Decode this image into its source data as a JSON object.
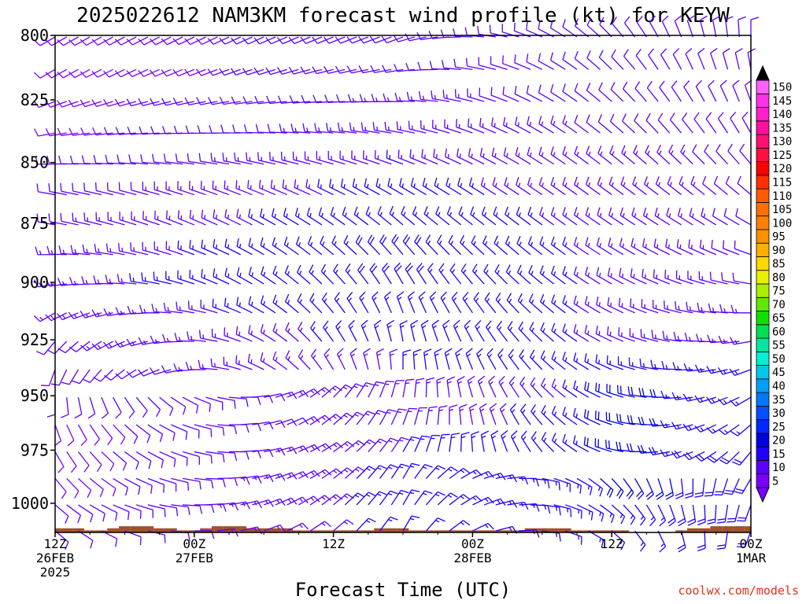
{
  "chart_data": {
    "type": "wind-barb-profile",
    "title": "2025022612 NAM3KM forecast wind profile (kt) for KEYW",
    "xlabel": "Forecast Time (UTC)",
    "ylabel": "",
    "y_axis": {
      "scale": "log",
      "range": [
        800,
        1014
      ],
      "ticks": [
        "800",
        "825",
        "850",
        "875",
        "900",
        "925",
        "950",
        "975",
        "1000"
      ]
    },
    "x_axis": {
      "range_hours": [
        0,
        60
      ],
      "ticks": [
        {
          "hour": 0,
          "lines": [
            "12Z",
            "26FEB",
            "2025"
          ]
        },
        {
          "hour": 12,
          "lines": [
            "00Z",
            "27FEB"
          ]
        },
        {
          "hour": 24,
          "lines": [
            "12Z"
          ]
        },
        {
          "hour": 36,
          "lines": [
            "00Z",
            "28FEB"
          ]
        },
        {
          "hour": 48,
          "lines": [
            "12Z"
          ]
        },
        {
          "hour": 60,
          "lines": [
            "00Z",
            "1MAR"
          ]
        }
      ]
    },
    "grid": false,
    "legend": "right",
    "colorbar": {
      "levels": [
        "5",
        "10",
        "15",
        "20",
        "25",
        "30",
        "35",
        "40",
        "45",
        "50",
        "55",
        "60",
        "65",
        "70",
        "75",
        "80",
        "85",
        "90",
        "95",
        "100",
        "105",
        "110",
        "115",
        "120",
        "125",
        "130",
        "135",
        "140",
        "145",
        "150"
      ],
      "colors": [
        "#7a00ff",
        "#5a00ff",
        "#2000ff",
        "#0000e0",
        "#0028ff",
        "#0050ff",
        "#0078ff",
        "#00a0ff",
        "#00c8e8",
        "#00f0d0",
        "#00e8a0",
        "#00e050",
        "#10e000",
        "#60e800",
        "#a8f000",
        "#e8f000",
        "#ffd800",
        "#ffb000",
        "#ff9000",
        "#ff8000",
        "#ff7000",
        "#ff5a00",
        "#ff3000",
        "#ff0000",
        "#ff1040",
        "#ff1070",
        "#ff10a0",
        "#ff20c8",
        "#ff30e8",
        "#ff60ff"
      ]
    },
    "winds": {
      "hours_step": 1,
      "levels_hpa": [
        800,
        812.5,
        825,
        837.5,
        850,
        862.5,
        875,
        887.5,
        900,
        912.5,
        925,
        937.5,
        950,
        962.5,
        975,
        987.5,
        1000,
        1012.5
      ],
      "speed_kt": [
        [
          8,
          8,
          9,
          9,
          10,
          11,
          12,
          13,
          14,
          13,
          12,
          11,
          10,
          9,
          9,
          9,
          10,
          10
        ],
        [
          12,
          12,
          13,
          14,
          15,
          16,
          17,
          18,
          18,
          17,
          16,
          15,
          14,
          14,
          15,
          16,
          16,
          16
        ],
        [
          10,
          10,
          11,
          11,
          12,
          12,
          12,
          12,
          12,
          13,
          14,
          15,
          16,
          17,
          18,
          18,
          18,
          18
        ]
      ],
      "direction_deg": [
        [
          240,
          240,
          250,
          260,
          270,
          280,
          280,
          270,
          260,
          240,
          220,
          200,
          180,
          160,
          150,
          140,
          130,
          130
        ],
        [
          250,
          260,
          270,
          280,
          290,
          300,
          310,
          320,
          330,
          340,
          350,
          0,
          10,
          20,
          30,
          30,
          30,
          30
        ],
        [
          0,
          350,
          340,
          330,
          320,
          310,
          300,
          290,
          280,
          270,
          260,
          250,
          240,
          230,
          220,
          210,
          200,
          200
        ]
      ],
      "strong_window_kt": 22
    },
    "terrain_top_hpa": [
      1012,
      1012,
      1012,
      1013,
      1013,
      1012,
      1011,
      1011,
      1011,
      1012,
      1012,
      1013,
      1013,
      1012,
      1011,
      1011,
      1011,
      1012,
      1012,
      1012,
      1012,
      1013,
      1013,
      1013,
      1013,
      1013,
      1013,
      1013,
      1012,
      1012,
      1012,
      1013,
      1013,
      1013,
      1013,
      1013,
      1013,
      1013,
      1013,
      1013,
      1013,
      1012,
      1012,
      1012,
      1012,
      1013,
      1013,
      1013,
      1013,
      1013,
      1014,
      1014,
      1014,
      1014,
      1013,
      1012,
      1012,
      1011,
      1011,
      1011,
      1011
    ]
  },
  "credit": "coolwx.com/models"
}
